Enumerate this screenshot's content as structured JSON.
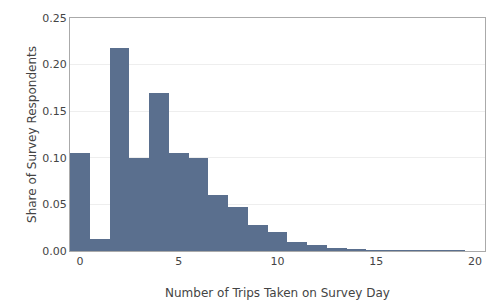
{
  "chart_data": {
    "type": "bar",
    "categories": [
      0,
      1,
      2,
      3,
      4,
      5,
      6,
      7,
      8,
      9,
      10,
      11,
      12,
      13,
      14,
      15,
      16,
      17,
      18,
      19,
      20
    ],
    "values": [
      0.105,
      0.013,
      0.218,
      0.1,
      0.17,
      0.105,
      0.1,
      0.06,
      0.047,
      0.028,
      0.02,
      0.01,
      0.006,
      0.003,
      0.002,
      0.001,
      0.0005,
      0.0003,
      0.0001,
      0.0001,
      0.0
    ],
    "color": "#5a6f8e",
    "xlabel": "Number of Trips Taken on Survey Day",
    "ylabel": "Share of Survey Respondents",
    "xlim": [
      -0.5,
      20.5
    ],
    "ylim": [
      0,
      0.25
    ],
    "xticks": [
      0,
      5,
      10,
      15,
      20
    ],
    "yticks": [
      {
        "value": 0,
        "label": "0.00"
      },
      0.05,
      {
        "value": 0.1,
        "label": "0.10"
      },
      0.15,
      {
        "value": 0.2,
        "label": "0.20"
      },
      0.25
    ],
    "grid": true
  }
}
